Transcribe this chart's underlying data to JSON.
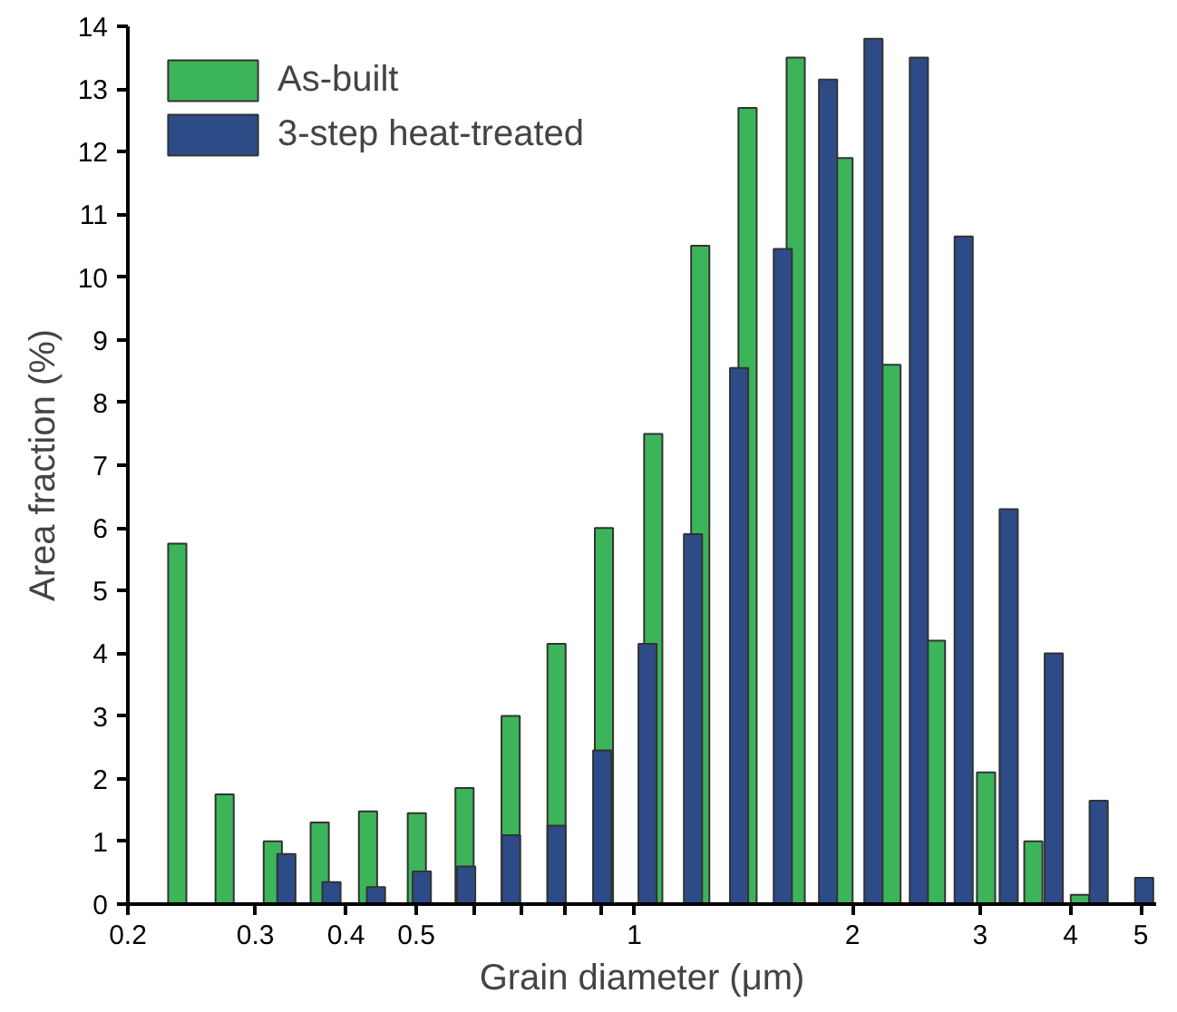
{
  "chart_data": {
    "type": "bar",
    "xlabel": "Grain diameter (μm)",
    "ylabel": "Area fraction (%)",
    "series": [
      {
        "name": "As-built",
        "color": "#3cb55a",
        "x": [
          0.234,
          0.272,
          0.317,
          0.368,
          0.429,
          0.501,
          0.583,
          0.675,
          0.781,
          0.908,
          1.062,
          1.233,
          1.433,
          1.67,
          1.944,
          2.264,
          2.608,
          3.058,
          3.554,
          4.12
        ],
        "values": [
          5.75,
          1.75,
          1.0,
          1.3,
          1.48,
          1.45,
          1.85,
          3.0,
          4.15,
          6.0,
          7.5,
          10.5,
          12.7,
          13.5,
          11.9,
          8.6,
          4.2,
          2.1,
          1.0,
          0.15
        ]
      },
      {
        "name": "3-step heat-treated",
        "color": "#2d4b87",
        "x": [
          0.331,
          0.382,
          0.44,
          0.509,
          0.586,
          0.676,
          0.781,
          0.903,
          1.043,
          1.205,
          1.395,
          1.603,
          1.851,
          2.138,
          2.47,
          2.848,
          3.286,
          3.792,
          4.374,
          5.054
        ],
        "values": [
          0.8,
          0.35,
          0.27,
          0.52,
          0.6,
          1.1,
          1.25,
          2.45,
          4.15,
          5.9,
          8.55,
          10.45,
          13.15,
          13.8,
          13.5,
          10.65,
          6.3,
          4.0,
          1.65,
          0.42
        ]
      }
    ],
    "log": "x",
    "xlim": [
      0.2,
      5.25
    ],
    "ylim": [
      0,
      14
    ],
    "xticks": [
      0.2,
      0.3,
      0.4,
      0.5,
      {
        "value": 0.6,
        "label": null
      },
      {
        "value": 0.7,
        "label": null
      },
      {
        "value": 0.8,
        "label": null
      },
      {
        "value": 0.9,
        "label": null
      },
      1,
      2,
      3,
      4,
      5
    ],
    "yticks": [
      0,
      1,
      2,
      3,
      4,
      5,
      6,
      7,
      8,
      9,
      10,
      11,
      12,
      13,
      14
    ],
    "grid": false,
    "legend": "top left"
  }
}
